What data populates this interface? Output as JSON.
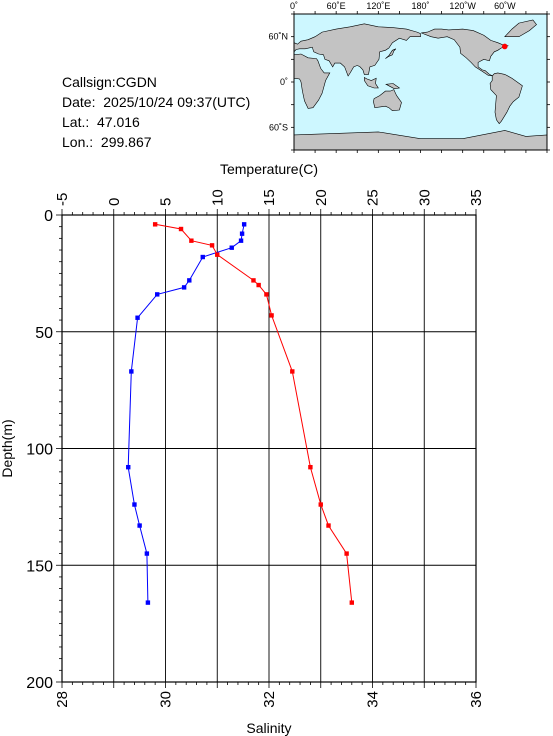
{
  "station": {
    "callsign": "Callsign:CGDN",
    "date": "Date:  2025/10/24 09:37(UTC)",
    "lat": "Lat.:  47.016",
    "lon": "Lon.:  299.867"
  },
  "map": {
    "top_labels": [
      "0˚",
      "60˚E",
      "120˚E",
      "180˚",
      "120˚W",
      "60˚W"
    ],
    "left_labels": [
      "60˚N",
      "0˚",
      "60˚S"
    ],
    "ocean_color": "#cdf7ff",
    "land_color": "#c3c3c3",
    "marker_color": "#ff0000",
    "marker": {
      "lon": 299.867,
      "lat": 47.016
    }
  },
  "chart_data": {
    "type": "line",
    "ylabel": "Depth(m)",
    "ylim": [
      0,
      200
    ],
    "y_inverted": true,
    "y_ticks": [
      0,
      50,
      100,
      150,
      200
    ],
    "grid": true,
    "x_axes": [
      {
        "label": "Temperature(C)",
        "position": "top",
        "lim": [
          -5,
          35
        ],
        "ticks": [
          -5,
          0,
          5,
          10,
          15,
          20,
          25,
          30,
          35
        ]
      },
      {
        "label": "Salinity",
        "position": "bottom",
        "lim": [
          28,
          36
        ],
        "ticks": [
          28,
          30,
          32,
          34,
          36
        ]
      }
    ],
    "series": [
      {
        "axis": "top",
        "color": "#0000ff",
        "x": [
          12.6,
          12.4,
          12.3,
          11.4,
          8.6,
          7.3,
          6.8,
          4.2,
          2.3,
          1.7,
          1.4,
          2.0,
          2.5,
          3.2,
          3.3
        ],
        "y": [
          4,
          8,
          11,
          14,
          18,
          28,
          31,
          34,
          44,
          67,
          108,
          124,
          133,
          145,
          166
        ]
      },
      {
        "axis": "bottom",
        "color": "#ff0000",
        "x": [
          29.8,
          30.3,
          30.5,
          30.9,
          31.0,
          31.7,
          31.8,
          31.95,
          32.05,
          32.45,
          32.8,
          33.0,
          33.15,
          33.5,
          33.6
        ],
        "y": [
          4,
          6,
          11,
          13,
          17,
          28,
          30,
          34,
          43,
          67,
          108,
          124,
          133,
          145,
          166
        ]
      }
    ]
  }
}
